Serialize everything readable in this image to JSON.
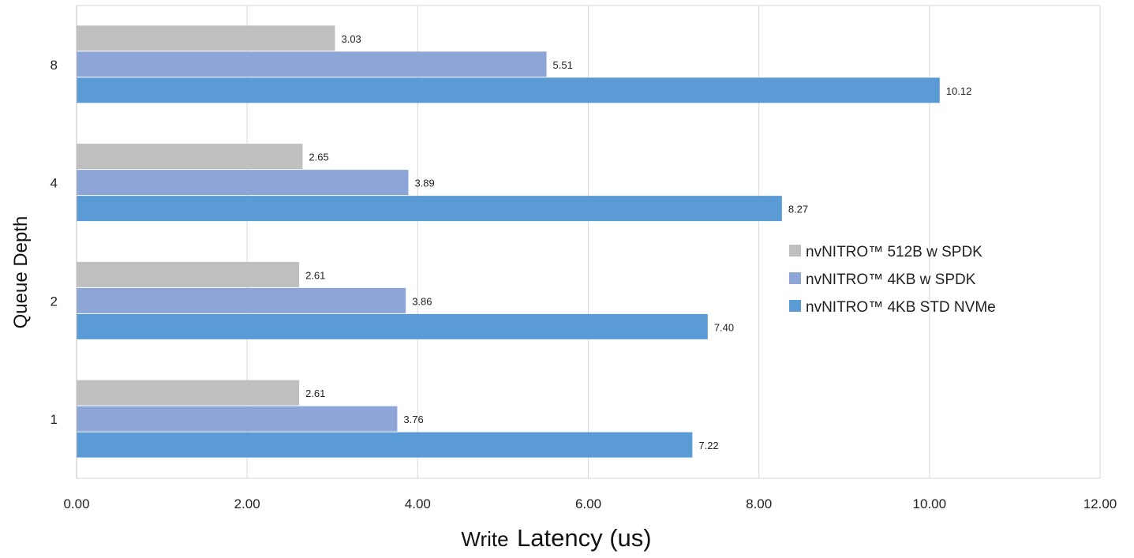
{
  "chart_data": {
    "type": "bar",
    "orientation": "horizontal",
    "categories": [
      "1",
      "2",
      "4",
      "8"
    ],
    "series": [
      {
        "name": "nvNITRO™ 512B w SPDK",
        "color": "#BFBFBF",
        "values": [
          2.61,
          2.61,
          2.65,
          3.03
        ]
      },
      {
        "name": "nvNITRO™ 4KB w  SPDK",
        "color": "#8EA5D8",
        "values": [
          3.76,
          3.86,
          3.89,
          5.51
        ]
      },
      {
        "name": "nvNITRO™  4KB STD NVMe",
        "color": "#5B9BD5",
        "values": [
          7.22,
          7.4,
          8.27,
          10.12
        ]
      }
    ],
    "data_labels": {
      "1": [
        "2.61",
        "3.76",
        "7.22"
      ],
      "2": [
        "2.61",
        "3.86",
        "7.40"
      ],
      "4": [
        "2.65",
        "3.89",
        "8.27"
      ],
      "8": [
        "3.03",
        "5.51",
        "10.12"
      ]
    },
    "xlabel_prefix": "Write",
    "xlabel_main": "Latency (us)",
    "ylabel": "Queue Depth",
    "xlim": [
      0,
      12
    ],
    "xticks": [
      "0.00",
      "2.00",
      "4.00",
      "6.00",
      "8.00",
      "10.00",
      "12.00"
    ],
    "grid": "vertical",
    "legend_position": "right"
  }
}
